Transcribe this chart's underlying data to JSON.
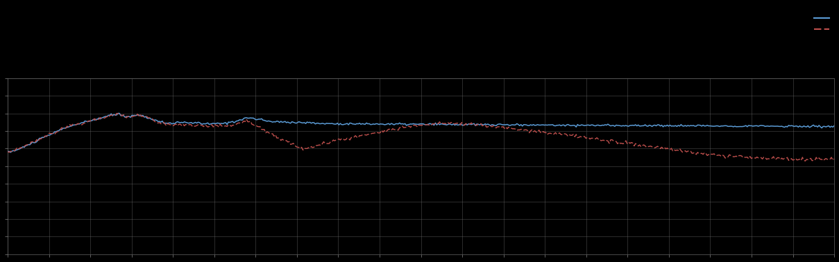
{
  "background_color": "#000000",
  "plot_bg_color": "#000000",
  "grid_color": "#666666",
  "line1_color": "#5B9BD5",
  "line2_color": "#C0504D",
  "xlim": [
    0,
    1
  ],
  "ylim": [
    0,
    1
  ],
  "figsize": [
    12.09,
    3.78
  ],
  "dpi": 100,
  "blue_x": [
    0,
    0.01,
    0.02,
    0.04,
    0.07,
    0.09,
    0.11,
    0.125,
    0.135,
    0.145,
    0.155,
    0.165,
    0.175,
    0.19,
    0.205,
    0.22,
    0.235,
    0.25,
    0.265,
    0.275,
    0.29,
    0.305,
    0.315,
    0.325,
    0.34,
    0.355,
    0.37,
    0.38,
    0.42,
    0.5,
    0.6,
    0.7,
    0.8,
    0.9,
    1.0
  ],
  "blue_y": [
    0.58,
    0.59,
    0.61,
    0.655,
    0.72,
    0.745,
    0.77,
    0.79,
    0.795,
    0.78,
    0.79,
    0.785,
    0.765,
    0.745,
    0.745,
    0.748,
    0.742,
    0.74,
    0.745,
    0.755,
    0.775,
    0.765,
    0.755,
    0.752,
    0.75,
    0.748,
    0.745,
    0.742,
    0.74,
    0.738,
    0.735,
    0.732,
    0.73,
    0.728,
    0.725
  ],
  "red_x": [
    0,
    0.01,
    0.02,
    0.04,
    0.07,
    0.09,
    0.11,
    0.125,
    0.135,
    0.145,
    0.155,
    0.165,
    0.175,
    0.19,
    0.205,
    0.22,
    0.235,
    0.25,
    0.265,
    0.275,
    0.29,
    0.305,
    0.315,
    0.325,
    0.34,
    0.355,
    0.37,
    0.39,
    0.42,
    0.45,
    0.49,
    0.53,
    0.57,
    0.61,
    0.65,
    0.69,
    0.73,
    0.77,
    0.81,
    0.85,
    0.88,
    0.91,
    0.95,
    1.0
  ],
  "red_y": [
    0.58,
    0.59,
    0.61,
    0.655,
    0.72,
    0.745,
    0.77,
    0.79,
    0.795,
    0.778,
    0.788,
    0.783,
    0.763,
    0.74,
    0.735,
    0.735,
    0.73,
    0.727,
    0.73,
    0.74,
    0.758,
    0.72,
    0.695,
    0.665,
    0.635,
    0.605,
    0.61,
    0.64,
    0.665,
    0.695,
    0.73,
    0.745,
    0.735,
    0.715,
    0.69,
    0.67,
    0.645,
    0.615,
    0.59,
    0.565,
    0.555,
    0.545,
    0.54,
    0.538
  ]
}
